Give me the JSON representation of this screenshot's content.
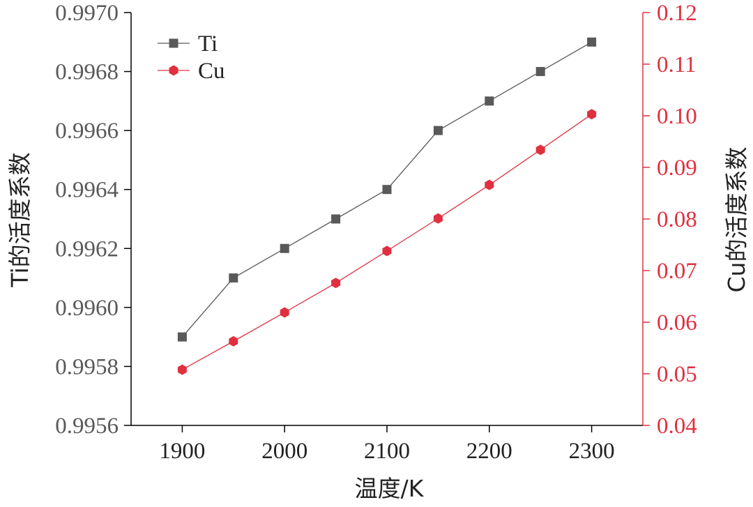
{
  "chart_data": {
    "type": "line",
    "xlabel": "温度/K",
    "ylabel_left": "Ti的活度系数",
    "ylabel_right": "Cu的活度系数",
    "x": [
      1900,
      1950,
      2000,
      2050,
      2100,
      2150,
      2200,
      2250,
      2300
    ],
    "xlim": [
      1850,
      2350
    ],
    "x_ticks": [
      1900,
      2000,
      2100,
      2200,
      2300
    ],
    "x_tick_labels": [
      "1900",
      "2000",
      "2100",
      "2200",
      "2300"
    ],
    "ylim_left": [
      0.9956,
      0.997
    ],
    "y_ticks_left": [
      "0.9956",
      "0.9958",
      "0.9960",
      "0.9962",
      "0.9964",
      "0.9966",
      "0.9968",
      "0.9970"
    ],
    "ylim_right": [
      0.04,
      0.12
    ],
    "y_ticks_right": [
      "0.04",
      "0.05",
      "0.06",
      "0.07",
      "0.08",
      "0.09",
      "0.10",
      "0.11",
      "0.12"
    ],
    "grid": false,
    "legend_position": "top-left",
    "series": [
      {
        "name": "Ti",
        "axis": "left",
        "marker": "square",
        "color": "#595959",
        "values": [
          0.9959,
          0.9961,
          0.9962,
          0.9963,
          0.9964,
          0.9966,
          0.9967,
          0.9968,
          0.9969
        ]
      },
      {
        "name": "Cu",
        "axis": "right",
        "marker": "hexagon",
        "color": "#e0303f",
        "values": [
          0.0508,
          0.0563,
          0.0619,
          0.0676,
          0.0738,
          0.0801,
          0.0866,
          0.0934,
          0.1003
        ]
      }
    ],
    "colors": {
      "axis_left": "#000000",
      "axis_right": "#e0303f",
      "tick_text_left": "#595959",
      "tick_text_right": "#e0303f"
    }
  }
}
